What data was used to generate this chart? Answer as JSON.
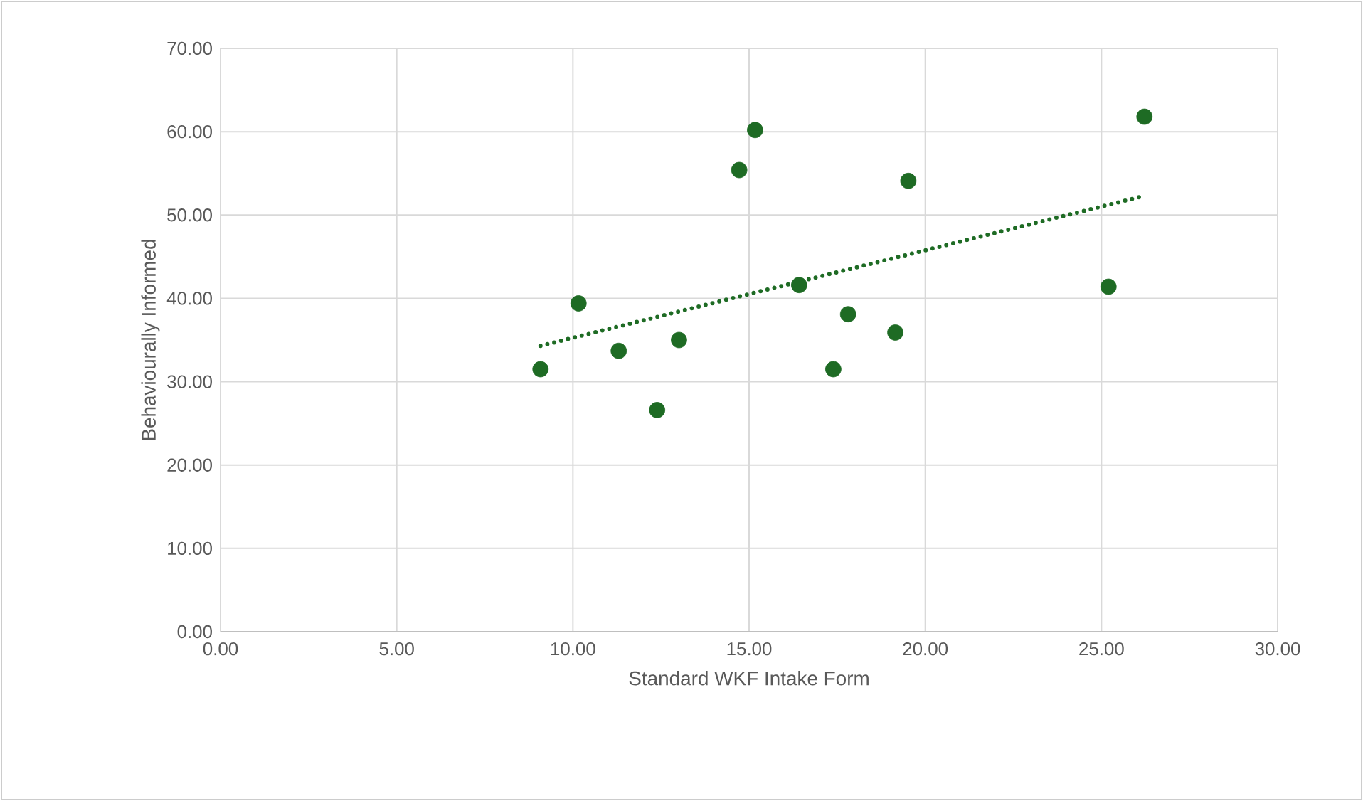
{
  "chart_data": {
    "type": "scatter",
    "xlabel": "Standard WKF Intake Form",
    "ylabel": "Behaviourally Informed",
    "xlim": [
      0,
      30
    ],
    "ylim": [
      0,
      70
    ],
    "xticks": [
      {
        "value": 0,
        "label": "0.00"
      },
      {
        "value": 5,
        "label": "5.00"
      },
      {
        "value": 10,
        "label": "10.00"
      },
      {
        "value": 15,
        "label": "15.00"
      },
      {
        "value": 20,
        "label": "20.00"
      },
      {
        "value": 25,
        "label": "25.00"
      },
      {
        "value": 30,
        "label": "30.00"
      }
    ],
    "yticks": [
      {
        "value": 0,
        "label": "0.00"
      },
      {
        "value": 10,
        "label": "10.00"
      },
      {
        "value": 20,
        "label": "20.00"
      },
      {
        "value": 30,
        "label": "30.00"
      },
      {
        "value": 40,
        "label": "40.00"
      },
      {
        "value": 50,
        "label": "50.00"
      },
      {
        "value": 60,
        "label": "60.00"
      },
      {
        "value": 70,
        "label": "70.00"
      }
    ],
    "grid": true,
    "series": [
      {
        "marker": "circle",
        "color": "#1e6b24",
        "x": [
          9.08,
          10.16,
          11.3,
          12.39,
          13.01,
          14.72,
          15.17,
          16.42,
          17.39,
          17.81,
          19.15,
          19.52,
          25.2,
          26.22
        ],
        "values": [
          31.5,
          39.4,
          33.7,
          26.6,
          35.0,
          55.4,
          60.2,
          41.6,
          31.5,
          38.1,
          35.9,
          54.1,
          41.4,
          61.8
        ]
      },
      {
        "type": "line",
        "marker": "none",
        "line_style": "dotted",
        "color": "#1e6b24",
        "x": [
          9.08,
          26.22
        ],
        "values": [
          34.3,
          52.3
        ]
      }
    ]
  }
}
